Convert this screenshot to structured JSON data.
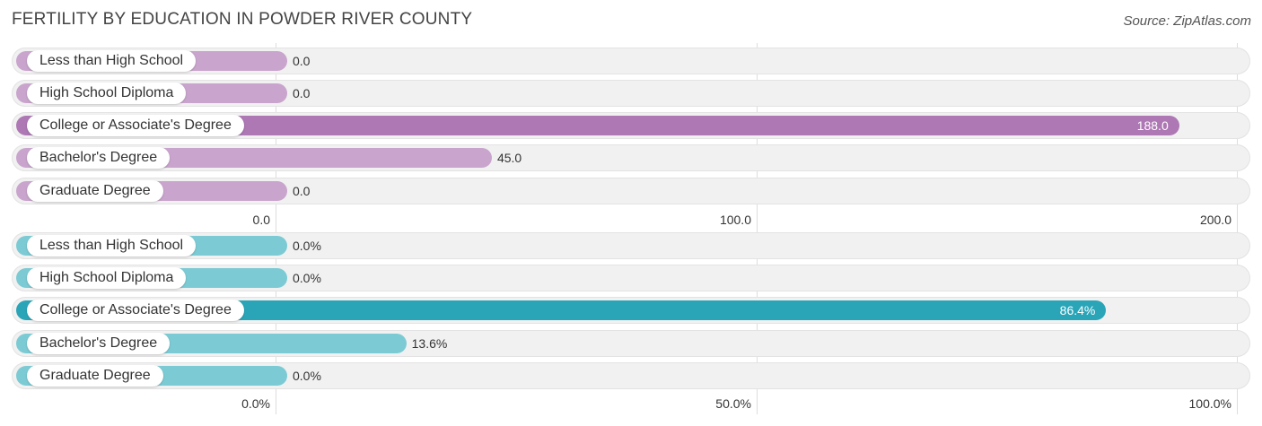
{
  "title": "FERTILITY BY EDUCATION IN POWDER RIVER COUNTY",
  "source": "Source: ZipAtlas.com",
  "chart_data": [
    {
      "type": "bar",
      "orientation": "horizontal",
      "categories": [
        "Less than High School",
        "High School Diploma",
        "College or Associate's Degree",
        "Bachelor's Degree",
        "Graduate Degree"
      ],
      "values": [
        0.0,
        0.0,
        188.0,
        45.0,
        0.0
      ],
      "value_labels": [
        "0.0",
        "0.0",
        "188.0",
        "45.0",
        "0.0"
      ],
      "xlim": [
        0,
        200
      ],
      "ticks": [
        0,
        100,
        200
      ],
      "tick_labels": [
        "0.0",
        "100.0",
        "200.0"
      ],
      "color": "#c9a5cd",
      "highlight_color": "#ad78b4",
      "highlight_index": 2
    },
    {
      "type": "bar",
      "orientation": "horizontal",
      "categories": [
        "Less than High School",
        "High School Diploma",
        "College or Associate's Degree",
        "Bachelor's Degree",
        "Graduate Degree"
      ],
      "values": [
        0.0,
        0.0,
        86.4,
        13.6,
        0.0
      ],
      "value_labels": [
        "0.0%",
        "0.0%",
        "86.4%",
        "13.6%",
        "0.0%"
      ],
      "xlim": [
        0,
        100
      ],
      "ticks": [
        0,
        50,
        100
      ],
      "tick_labels": [
        "0.0%",
        "50.0%",
        "100.0%"
      ],
      "color": "#7ccbd4",
      "highlight_color": "#2aa5b8",
      "highlight_index": 2
    }
  ]
}
